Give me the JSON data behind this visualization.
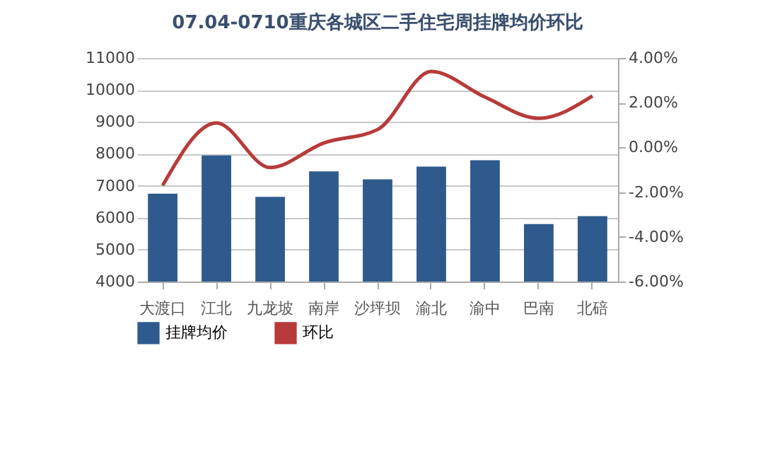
{
  "chart_data": {
    "type": "bar",
    "title": "07.04-0710重庆各城区二手住宅周挂牌均价环比",
    "categories": [
      "大渡口",
      "江北",
      "九龙坡",
      "南岸",
      "沙坪坝",
      "渝北",
      "渝中",
      "巴南",
      "北碚"
    ],
    "series": [
      {
        "name": "挂牌均价",
        "color": "#2e5a8e",
        "values": [
          6750,
          7950,
          6650,
          7450,
          7200,
          7600,
          7800,
          5800,
          6050
        ]
      },
      {
        "name": "环比",
        "type": "line",
        "axis": "y2",
        "color": "#b83a3a",
        "values": [
          -1.7,
          1.1,
          -0.9,
          0.2,
          0.8,
          3.4,
          2.25,
          1.3,
          2.3
        ]
      }
    ],
    "ylim": [
      4000,
      11000
    ],
    "yticks": [
      4000,
      5000,
      6000,
      7000,
      8000,
      9000,
      10000,
      11000
    ],
    "y2lim": [
      -6,
      4
    ],
    "y2ticks": [
      {
        "value": -6,
        "label": "-6.00%"
      },
      {
        "value": -4,
        "label": "-4.00%"
      },
      {
        "value": -2,
        "label": "-2.00%"
      },
      {
        "value": 0,
        "label": "0.00%"
      },
      {
        "value": 2,
        "label": "2.00%"
      },
      {
        "value": 4,
        "label": "4.00%"
      }
    ],
    "grid": "y",
    "legend": "bottom",
    "marker": "none",
    "line_style": "solid"
  }
}
